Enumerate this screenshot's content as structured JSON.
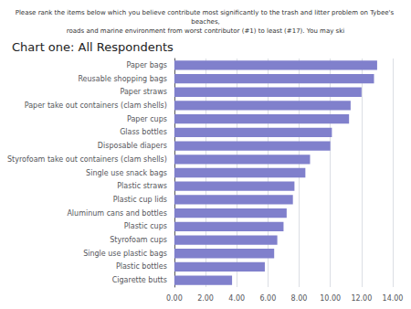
{
  "chart_data": {
    "type": "bar",
    "orientation": "horizontal",
    "title": "Chart one: All Respondents",
    "subtitle": "Please rank the items below which you believe contribute most significantly to the trash and litter problem on Tybee's beaches,\nroads and marine environment from worst contributor (#1) to least (#17). You may ski",
    "categories": [
      "Paper bags",
      "Reusable shopping bags",
      "Paper straws",
      "Paper take out containers (clam shells)",
      "Paper cups",
      "Glass bottles",
      "Disposable diapers",
      "Styrofoam take out containers (clam shells)",
      "Single use snack bags",
      "Plastic straws",
      "Plastic cup lids",
      "Aluminum cans and bottles",
      "Plastic cups",
      "Styrofoam cups",
      "Single use plastic bags",
      "Plastic bottles",
      "Cigarette butts"
    ],
    "values": [
      13.0,
      12.8,
      12.0,
      11.3,
      11.2,
      10.1,
      10.0,
      8.7,
      8.4,
      7.7,
      7.6,
      7.2,
      7.0,
      6.6,
      6.4,
      5.8,
      3.7
    ],
    "color": "#8080cc",
    "xlim": [
      0,
      14
    ],
    "xticks": [
      {
        "value": 0,
        "label": "0.00"
      },
      {
        "value": 2,
        "label": "2.00"
      },
      {
        "value": 4,
        "label": "4.00"
      },
      {
        "value": 6,
        "label": "6.00"
      },
      {
        "value": 8,
        "label": "8.00"
      },
      {
        "value": 10,
        "label": "10.00"
      },
      {
        "value": 12,
        "label": "12.00"
      },
      {
        "value": 14,
        "label": "14.00"
      }
    ],
    "grid": true
  }
}
